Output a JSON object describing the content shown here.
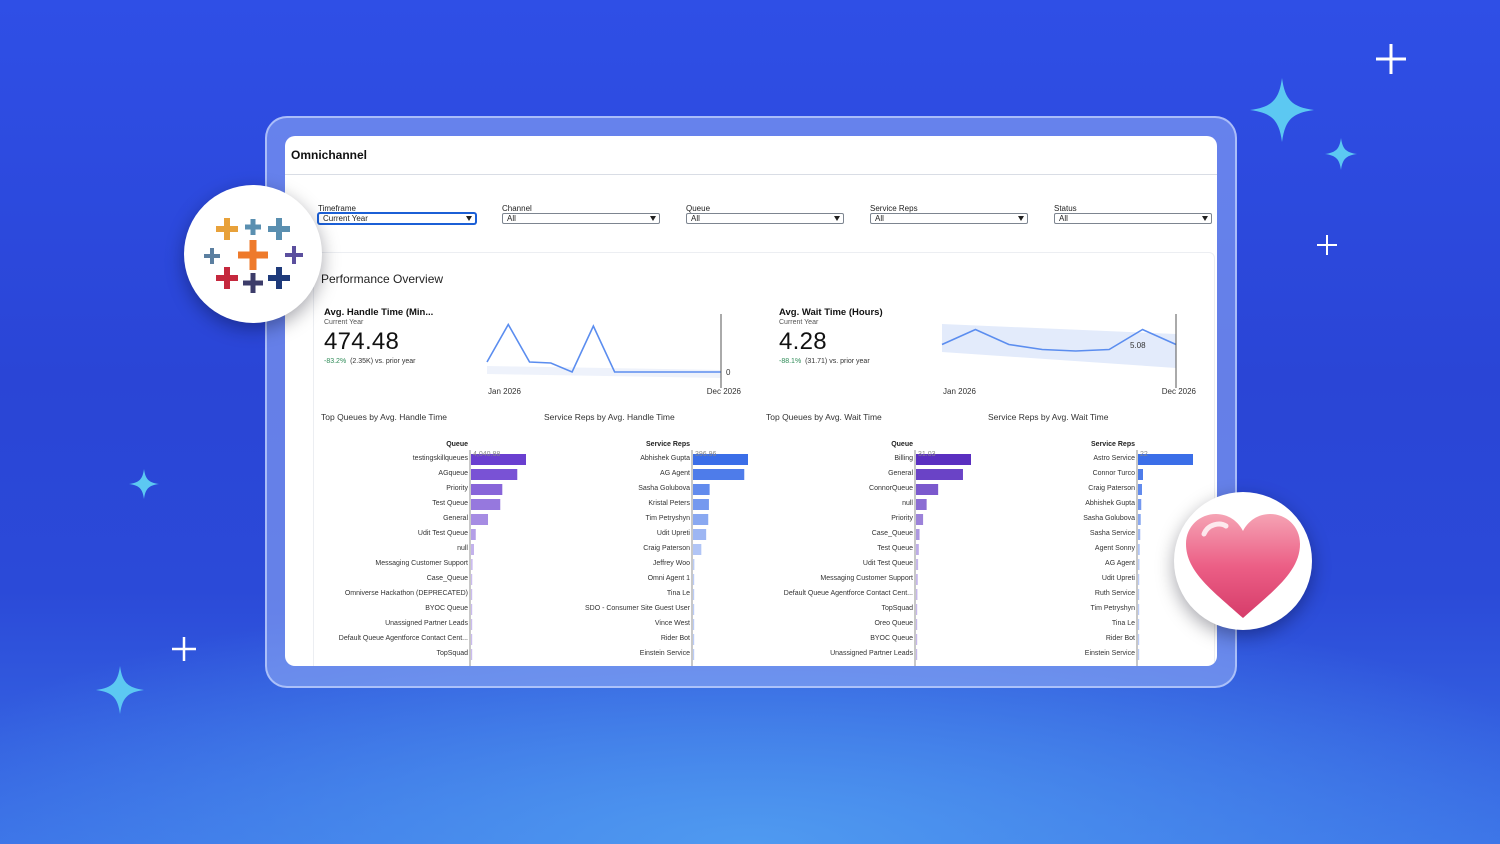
{
  "app": {
    "title": "Omnichannel"
  },
  "filters": [
    {
      "label": "Timeframe",
      "value": "Current Year",
      "active": true
    },
    {
      "label": "Channel",
      "value": "All",
      "active": false
    },
    {
      "label": "Queue",
      "value": "All",
      "active": false
    },
    {
      "label": "Service Reps",
      "value": "All",
      "active": false
    },
    {
      "label": "Status",
      "value": "All",
      "active": false
    }
  ],
  "section": {
    "title": "Performance Overview"
  },
  "kpis": [
    {
      "title": "Avg. Handle Time (Min...",
      "subtitle": "Current Year",
      "value": "474.48",
      "delta_pct": "-83.2%",
      "delta_rest": "(2.35K) vs. prior year",
      "x_start": "Jan 2026",
      "x_end": "Dec 2026",
      "end_label": "0",
      "series": [
        0.2,
        0.95,
        0.2,
        0.18,
        0.0,
        0.92,
        0.0,
        0.0,
        0.0,
        0.0,
        0.0,
        0.0
      ]
    },
    {
      "title": "Avg. Wait Time (Hours)",
      "subtitle": "Current Year",
      "value": "4.28",
      "delta_pct": "-88.1%",
      "delta_rest": "(31.71) vs. prior year",
      "x_start": "Jan 2026",
      "x_end": "Dec 2026",
      "end_label": "5.08",
      "series": [
        0.55,
        0.85,
        0.55,
        0.45,
        0.42,
        0.45,
        0.85,
        0.55
      ]
    }
  ],
  "chart_data": [
    {
      "type": "bar",
      "title": "Top Queues by Avg. Handle Time",
      "axis_label": "Queue",
      "color": "#6a3fd0",
      "top_value_label": "4,040.88",
      "categories": [
        "testingskillqueues",
        "AGqueue",
        "Priority",
        "Test Queue",
        "General",
        "Udit Test Queue",
        "null",
        "Messaging Customer Support",
        "Case_Queue",
        "Omniverse Hackathon (DEPRECATED)",
        "BYOC Queue",
        "Unassigned Partner Leads",
        "Default Queue Agentforce Contact Cent...",
        "TopSquad"
      ],
      "values": [
        4040.88,
        3400,
        2300,
        2150,
        1250,
        350,
        220,
        120,
        90,
        60,
        50,
        40,
        30,
        20
      ]
    },
    {
      "type": "bar",
      "title": "Service Reps by Avg. Handle Time",
      "axis_label": "Service Reps",
      "color": "#3b6ee8",
      "top_value_label": "396.96",
      "categories": [
        "Abhishek Gupta",
        "AG Agent",
        "Sasha Golubova",
        "Kristal Peters",
        "Tim Petryshyn",
        "Udit Upreti",
        "Craig Paterson",
        "Jeffrey Woo",
        "Omni Agent 1",
        "Tina Le",
        "SDO - Consumer Site Guest User",
        "Vince West",
        "Rider Bot",
        "Einstein Service"
      ],
      "values": [
        396.96,
        370,
        120,
        115,
        110,
        95,
        60,
        10,
        8,
        6,
        5,
        4,
        3,
        2
      ]
    },
    {
      "type": "bar",
      "title": "Top Queues by Avg. Wait Time",
      "axis_label": "Queue",
      "color": "#5a2fc0",
      "top_value_label": "31.03",
      "categories": [
        "Billing",
        "General",
        "ConnorQueue",
        "null",
        "Priority",
        "Case_Queue",
        "Test Queue",
        "Udit Test Queue",
        "Messaging Customer Support",
        "Default Queue Agentforce Contact Cent...",
        "TopSquad",
        "Oreo Queue",
        "BYOC Queue",
        "Unassigned Partner Leads"
      ],
      "values": [
        31.03,
        26.5,
        12.5,
        6.0,
        4.0,
        2.0,
        1.6,
        1.2,
        1.0,
        0.8,
        0.6,
        0.5,
        0.4,
        0.3
      ]
    },
    {
      "type": "bar",
      "title": "Service Reps by Avg. Wait Time",
      "axis_label": "Service Reps",
      "color": "#3b6ee8",
      "top_value_label": "22",
      "categories": [
        "Astro Service",
        "Connor Turco",
        "Craig Paterson",
        "Abhishek Gupta",
        "Sasha Golubova",
        "Sasha Service",
        "Agent Sonny",
        "AG Agent",
        "Udit Upreti",
        "Ruth Service",
        "Tim Petryshyn",
        "Tina Le",
        "Rider Bot",
        "Einstein Service"
      ],
      "values": [
        22,
        2.0,
        1.6,
        1.3,
        1.1,
        0.9,
        0.7,
        0.6,
        0.5,
        0.4,
        0.35,
        0.3,
        0.25,
        0.2
      ]
    }
  ]
}
